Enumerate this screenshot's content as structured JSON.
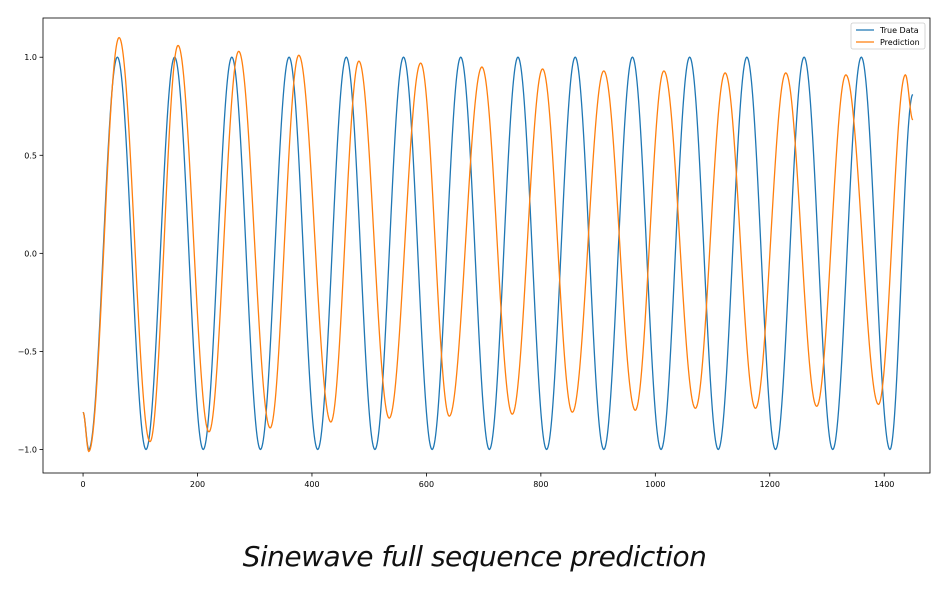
{
  "chart_data": {
    "type": "line",
    "title": "",
    "xlabel": "",
    "ylabel": "",
    "xlim": [
      -70,
      1480
    ],
    "ylim": [
      -1.12,
      1.2
    ],
    "xticks": [
      0,
      200,
      400,
      600,
      800,
      1000,
      1200,
      1400
    ],
    "yticks": [
      1.0,
      0.5,
      0.0,
      -0.5,
      -1.0
    ],
    "xtick_labels": [
      "0",
      "200",
      "400",
      "600",
      "800",
      "1000",
      "1200",
      "1400"
    ],
    "ytick_labels": [
      "1.0",
      "0.5",
      "0.0",
      "−0.5",
      "−1.0"
    ],
    "grid": false,
    "legend_position": "top-right",
    "series": [
      {
        "name": "True Data",
        "color": "#1f77b4",
        "model": "sine",
        "period": 100,
        "amplitude": 1.0,
        "x_range": [
          0,
          1450
        ],
        "phase_x": [
          0,
          10,
          60,
          110,
          160,
          210,
          260,
          310,
          360,
          410,
          460,
          510,
          560,
          610,
          660,
          710,
          760,
          810,
          860,
          910,
          960,
          1010,
          1060,
          1110,
          1160,
          1210,
          1260,
          1310,
          1360,
          1410,
          1450
        ],
        "phase_y": [
          -0.81,
          -1.0,
          1.0,
          -1.0,
          1.0,
          -1.0,
          1.0,
          -1.0,
          1.0,
          -1.0,
          1.0,
          -1.0,
          1.0,
          -1.0,
          1.0,
          -1.0,
          1.0,
          -1.0,
          1.0,
          -1.0,
          1.0,
          -1.0,
          1.0,
          -1.0,
          1.0,
          -1.0,
          1.0,
          -1.0,
          1.0,
          -1.0,
          0.81
        ]
      },
      {
        "name": "Prediction",
        "color": "#ff7f0e",
        "x": [
          0,
          10,
          63,
          117,
          166,
          220,
          272,
          327,
          377,
          433,
          482,
          535,
          590,
          640,
          697,
          750,
          803,
          855,
          910,
          965,
          1015,
          1070,
          1122,
          1175,
          1228,
          1282,
          1333,
          1390,
          1437,
          1450
        ],
        "y": [
          -0.81,
          -1.01,
          1.1,
          -0.96,
          1.06,
          -0.91,
          1.03,
          -0.89,
          1.01,
          -0.86,
          0.98,
          -0.84,
          0.97,
          -0.83,
          0.95,
          -0.82,
          0.94,
          -0.81,
          0.93,
          -0.8,
          0.93,
          -0.79,
          0.92,
          -0.79,
          0.92,
          -0.78,
          0.91,
          -0.77,
          0.91,
          0.68
        ]
      }
    ]
  },
  "caption": "Sinewave full sequence prediction"
}
